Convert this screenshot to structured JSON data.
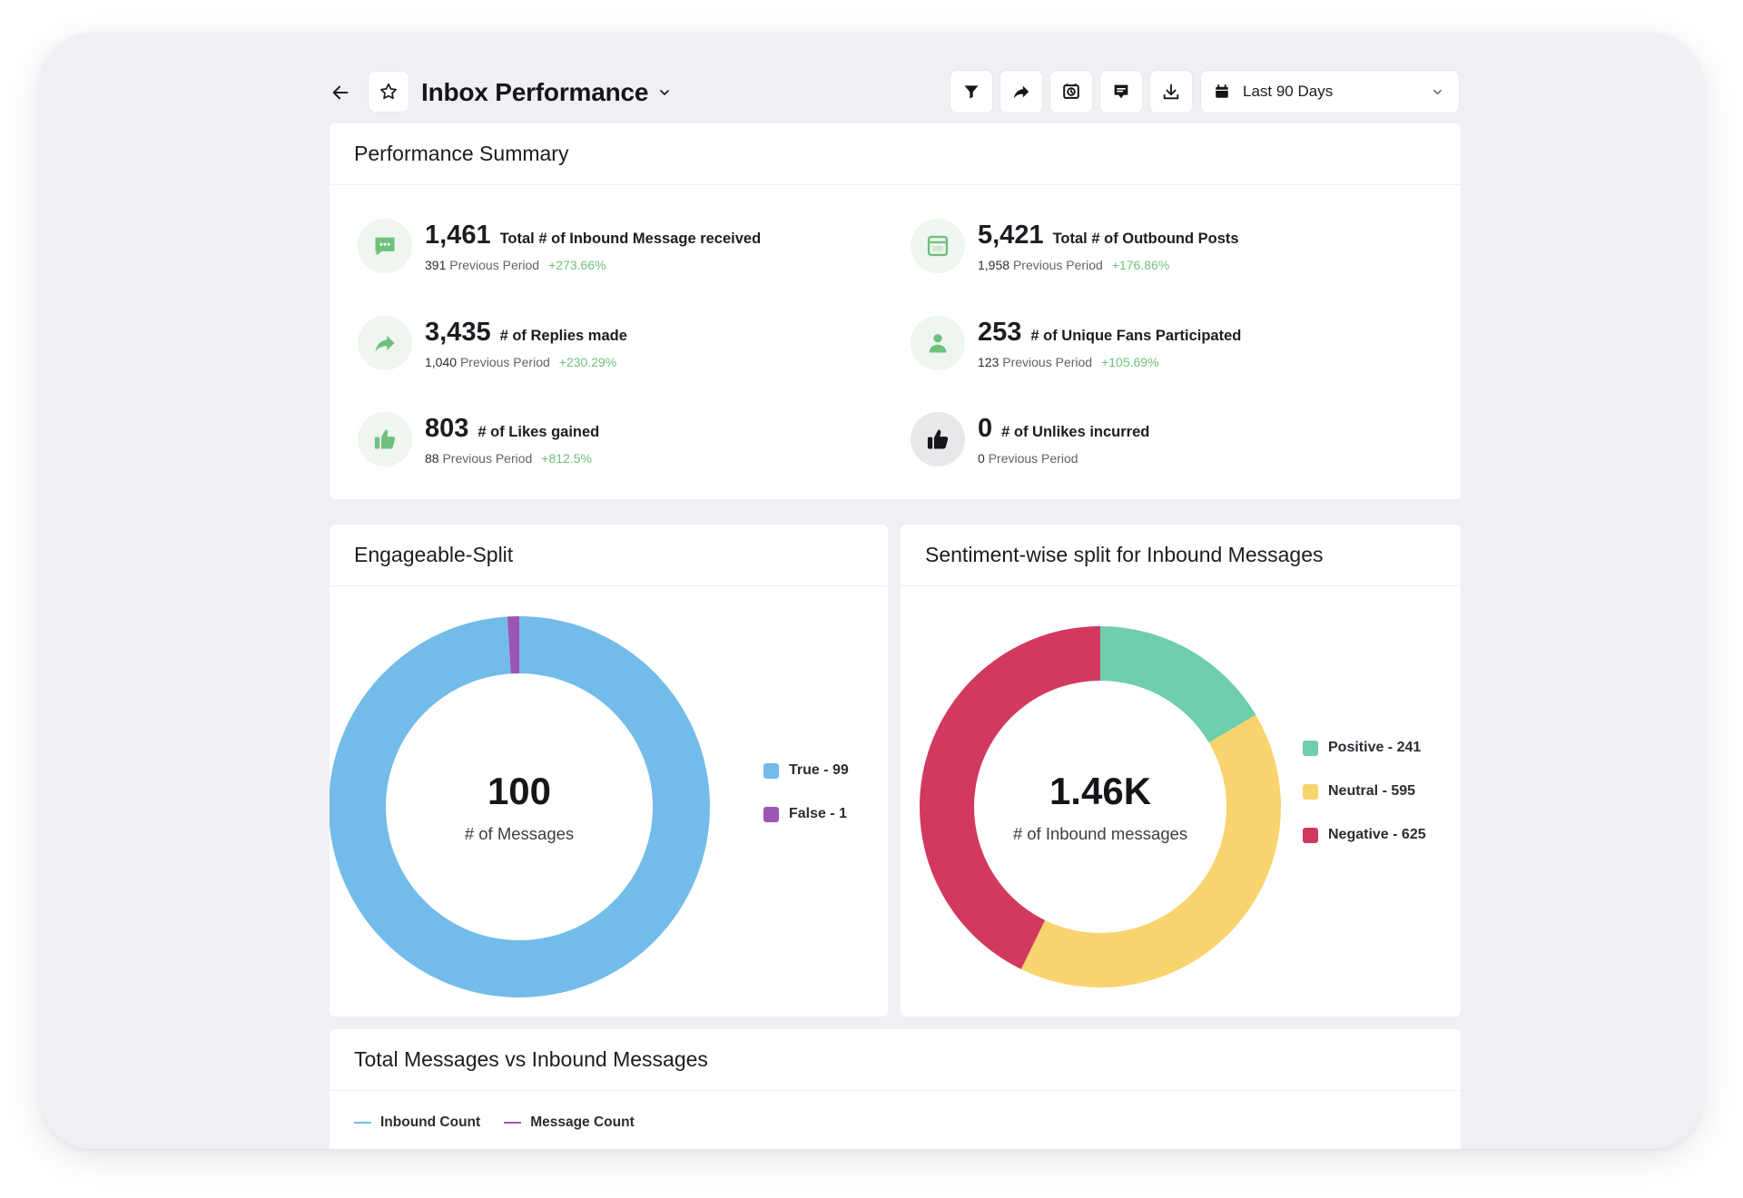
{
  "header": {
    "title": "Inbox Performance",
    "date_range": "Last 90 Days"
  },
  "summary": {
    "title": "Performance Summary",
    "previous_label": "Previous Period",
    "metrics": [
      {
        "value": "1,461",
        "label": "Total # of Inbound Message received",
        "previous": "391",
        "change": "+273.66%",
        "icon": "chat-icon"
      },
      {
        "value": "5,421",
        "label": "Total # of Outbound Posts",
        "previous": "1,958",
        "change": "+176.86%",
        "icon": "post-window-icon"
      },
      {
        "value": "3,435",
        "label": "# of Replies made",
        "previous": "1,040",
        "change": "+230.29%",
        "icon": "reply-arrow-icon"
      },
      {
        "value": "253",
        "label": "# of Unique Fans Participated",
        "previous": "123",
        "change": "+105.69%",
        "icon": "user-icon"
      },
      {
        "value": "803",
        "label": "# of Likes gained",
        "previous": "88",
        "change": "+812.5%",
        "icon": "thumbs-up-icon"
      },
      {
        "value": "0",
        "label": "# of Unlikes incurred",
        "previous": "0",
        "change": "",
        "icon": "thumbs-up-dark-icon"
      }
    ]
  },
  "engageable": {
    "title": "Engageable-Split",
    "center_value": "100",
    "center_label": "# of Messages"
  },
  "sentiment": {
    "title": "Sentiment-wise split for Inbound Messages",
    "center_value": "1.46K",
    "center_label": "# of Inbound messages"
  },
  "totals": {
    "title": "Total Messages vs Inbound Messages"
  },
  "colors": {
    "true": "#73bbe8",
    "false": "#9c57b5",
    "positive": "#6fceab",
    "neutral": "#f7d46d",
    "negative": "#d2395e",
    "inbound_line": "#73bbe8",
    "message_line": "#9c57b5",
    "accent_green": "#6fc07d"
  },
  "chart_data": [
    {
      "type": "pie",
      "variant": "donut",
      "categories": [
        "True",
        "False"
      ],
      "values": [
        99,
        1
      ],
      "legend_labels": [
        "True - 99",
        "False - 1"
      ],
      "legend": "right"
    },
    {
      "type": "pie",
      "variant": "donut",
      "categories": [
        "Positive",
        "Neutral",
        "Negative"
      ],
      "values": [
        241,
        595,
        625
      ],
      "legend_labels": [
        "Positive - 241",
        "Neutral - 595",
        "Negative - 625"
      ],
      "legend": "right"
    },
    {
      "type": "line",
      "series": [
        {
          "name": "Inbound Count",
          "values": []
        },
        {
          "name": "Message Count",
          "values": []
        }
      ],
      "legend": "top-left"
    }
  ]
}
